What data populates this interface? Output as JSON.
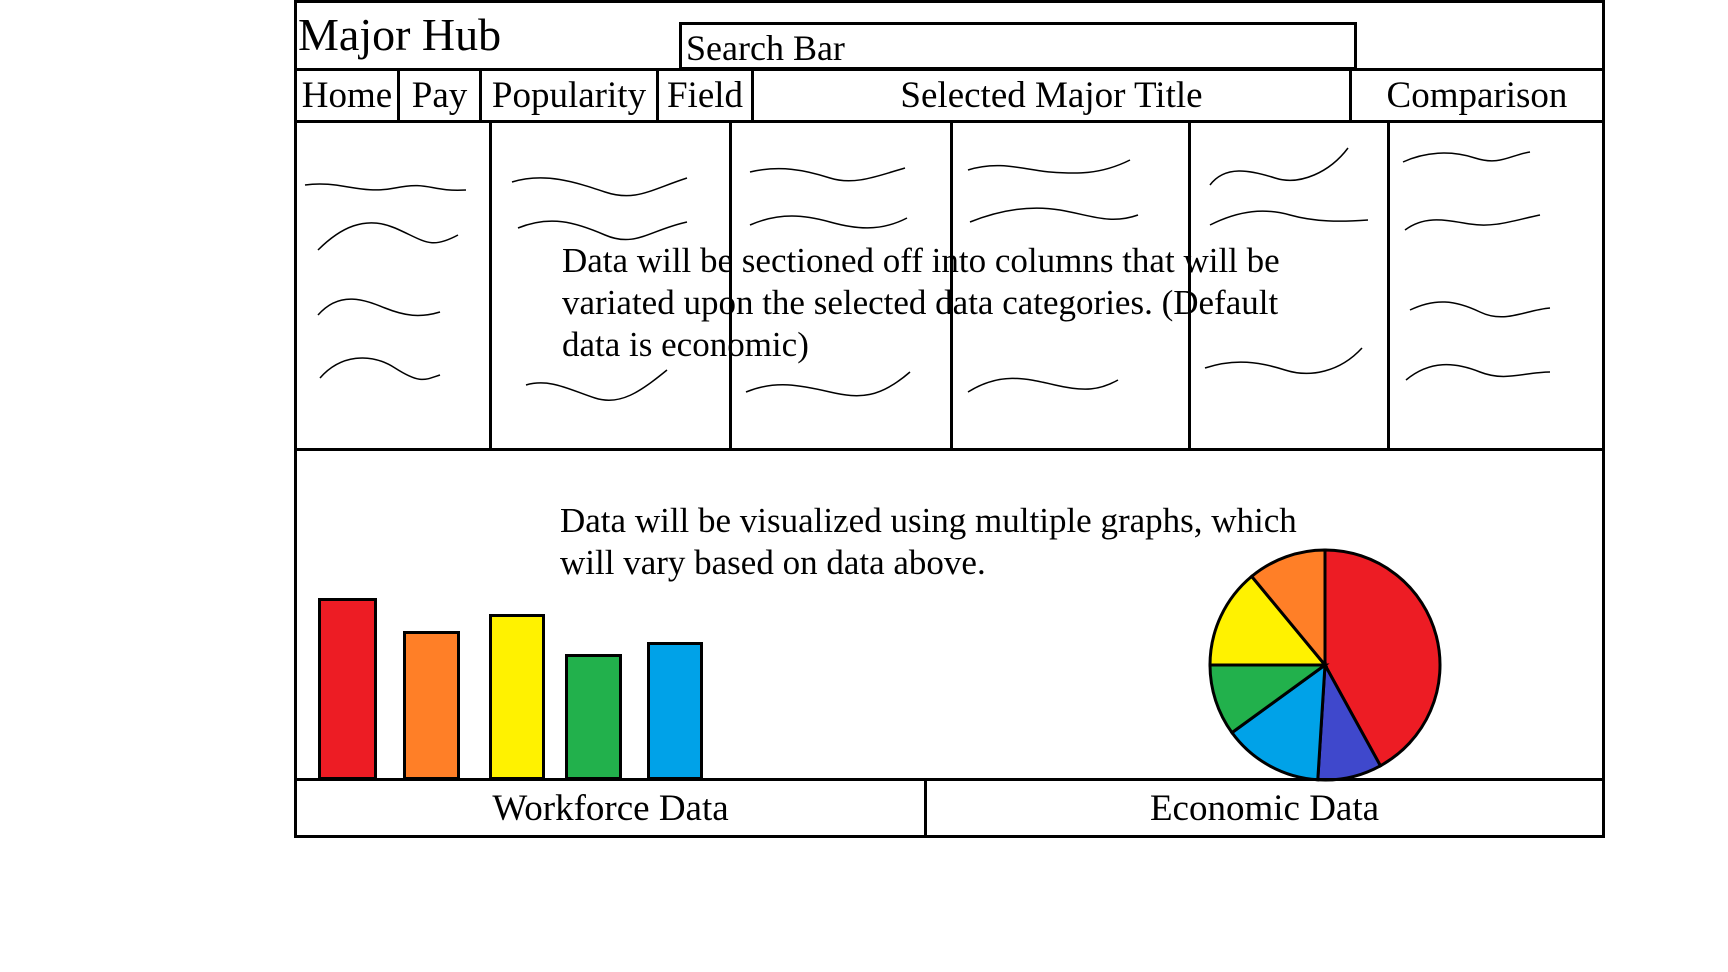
{
  "app": {
    "title": "Major Hub"
  },
  "search": {
    "label": "Search Bar"
  },
  "nav": {
    "items": [
      "Home",
      "Pay",
      "Popularity",
      "Field"
    ],
    "selected_title": "Selected Major Title",
    "comparison": "Comparison"
  },
  "data_section": {
    "note": "Data will be sectioned off into columns that will be variated upon the selected data categories. (Default data is economic)"
  },
  "graph_section": {
    "note": "Data will be visualized using multiple graphs, which will vary based on data above."
  },
  "footer": {
    "left": "Workforce Data",
    "right": "Economic Data"
  },
  "chart_data": [
    {
      "type": "bar",
      "values": [
        100,
        82,
        91,
        69,
        76
      ],
      "colors": [
        "#ed1c24",
        "#ff7f27",
        "#fff200",
        "#22b14c",
        "#00a2e8"
      ]
    },
    {
      "type": "pie",
      "values": [
        42,
        9,
        14,
        10,
        14,
        11
      ],
      "colors": [
        "#ed1c24",
        "#3f48cc",
        "#00a2e8",
        "#22b14c",
        "#fff200",
        "#ff7f27"
      ]
    }
  ]
}
